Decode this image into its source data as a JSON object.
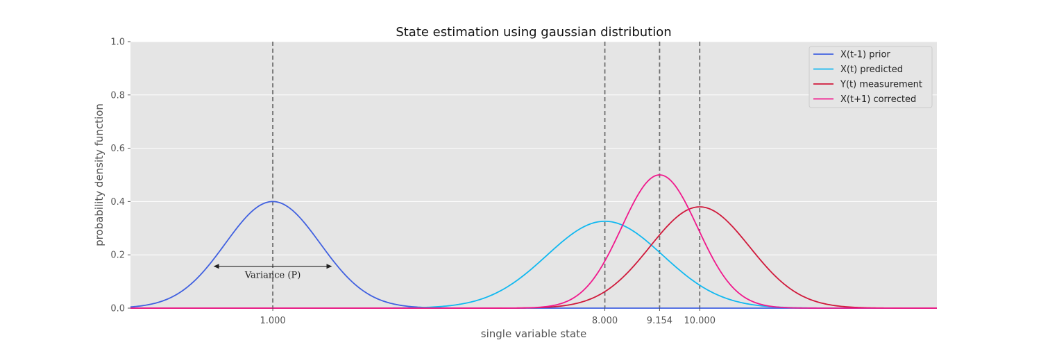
{
  "chart_data": {
    "type": "line",
    "title": "State estimation using gaussian distribution",
    "xlabel": "single variable state",
    "ylabel": "probability density function",
    "xlim": [
      -2,
      15
    ],
    "ylim": [
      0,
      1.0
    ],
    "y_ticks": [
      "0.0",
      "0.2",
      "0.4",
      "0.6",
      "0.8",
      "1.0"
    ],
    "y_tick_values": [
      0,
      0.2,
      0.4,
      0.6,
      0.8,
      1.0
    ],
    "x_ticks": [
      {
        "value": 1.0,
        "label": "1.000"
      },
      {
        "value": 8.0,
        "label": "8.000"
      },
      {
        "value": 9.154,
        "label": "9.154"
      },
      {
        "value": 10.0,
        "label": "10.000"
      }
    ],
    "grid": "horizontal",
    "legend_position": "top-right",
    "series": [
      {
        "name": "X(t-1) prior",
        "mean": 1.0,
        "std": 1.0,
        "peak": 0.4,
        "color": "#4060e0"
      },
      {
        "name": "X(t) predicted",
        "mean": 8.0,
        "std": 1.225,
        "peak": 0.326,
        "color": "#10b8f0"
      },
      {
        "name": "Y(t) measurement",
        "mean": 10.0,
        "std": 1.05,
        "peak": 0.38,
        "color": "#d0183a"
      },
      {
        "name": "X(t+1) corrected",
        "mean": 9.154,
        "std": 0.8,
        "peak": 0.5,
        "color": "#f0188c"
      }
    ],
    "vlines": [
      1.0,
      8.0,
      9.154,
      10.0
    ],
    "annotation": {
      "text": "Variance (P)",
      "x_from": -0.25,
      "x_to": 2.25,
      "y": 0.157
    }
  }
}
